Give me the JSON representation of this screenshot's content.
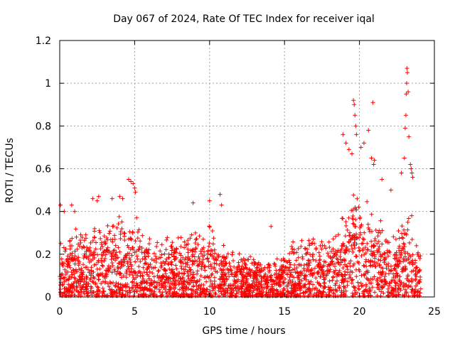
{
  "chart_data": {
    "type": "scatter",
    "title": "Day 067 of 2024, Rate Of TEC Index for receiver iqal",
    "xlabel": "GPS time / hours",
    "ylabel": "ROTI / TECUs",
    "xlim": [
      0,
      25
    ],
    "ylim": [
      0,
      1.2
    ],
    "x_ticks": [
      "0",
      "5",
      "10",
      "15",
      "20",
      "25"
    ],
    "y_ticks": [
      "0",
      "0.2",
      "0.4",
      "0.6",
      "0.8",
      "1",
      "1.2"
    ],
    "x_tick_values": [
      0,
      5,
      10,
      15,
      20,
      25
    ],
    "y_tick_values": [
      0,
      0.2,
      0.4,
      0.6,
      0.8,
      1.0,
      1.2
    ],
    "grid": true,
    "marker": "+",
    "series": [
      {
        "name": "ROTI",
        "color": "#ff0000",
        "envelope_x": [
          0.0,
          0.5,
          1.0,
          1.5,
          2.0,
          2.5,
          3.0,
          3.5,
          4.0,
          4.5,
          5.0,
          5.5,
          6.0,
          6.5,
          7.0,
          7.5,
          8.0,
          8.5,
          9.0,
          9.5,
          10.0,
          10.5,
          11.0,
          11.5,
          12.0,
          12.5,
          13.0,
          13.5,
          14.0,
          14.5,
          15.0,
          15.5,
          16.0,
          16.5,
          17.0,
          17.5,
          18.0,
          18.5,
          19.0,
          19.5,
          20.0,
          20.5,
          21.0,
          21.5,
          22.0,
          22.5,
          23.0,
          23.5,
          24.0
        ],
        "envelope_max": [
          0.3,
          0.28,
          0.32,
          0.33,
          0.38,
          0.4,
          0.36,
          0.38,
          0.4,
          0.38,
          0.42,
          0.35,
          0.32,
          0.3,
          0.3,
          0.28,
          0.28,
          0.3,
          0.33,
          0.32,
          0.36,
          0.3,
          0.26,
          0.24,
          0.22,
          0.2,
          0.2,
          0.18,
          0.18,
          0.2,
          0.24,
          0.26,
          0.28,
          0.3,
          0.32,
          0.28,
          0.3,
          0.35,
          0.45,
          0.55,
          0.5,
          0.45,
          0.4,
          0.38,
          0.36,
          0.35,
          0.45,
          0.4,
          0.22
        ],
        "outliers": [
          {
            "x": 0.05,
            "y": 0.43
          },
          {
            "x": 0.3,
            "y": 0.4
          },
          {
            "x": 0.8,
            "y": 0.43
          },
          {
            "x": 1.0,
            "y": 0.4
          },
          {
            "x": 2.2,
            "y": 0.46
          },
          {
            "x": 2.6,
            "y": 0.47
          },
          {
            "x": 2.5,
            "y": 0.45
          },
          {
            "x": 3.5,
            "y": 0.46
          },
          {
            "x": 4.0,
            "y": 0.47
          },
          {
            "x": 4.2,
            "y": 0.46
          },
          {
            "x": 4.6,
            "y": 0.55
          },
          {
            "x": 4.75,
            "y": 0.54
          },
          {
            "x": 4.9,
            "y": 0.53
          },
          {
            "x": 5.0,
            "y": 0.51
          },
          {
            "x": 5.05,
            "y": 0.49
          },
          {
            "x": 8.9,
            "y": 0.44
          },
          {
            "x": 10.0,
            "y": 0.45
          },
          {
            "x": 10.7,
            "y": 0.48
          },
          {
            "x": 10.8,
            "y": 0.43
          },
          {
            "x": 14.1,
            "y": 0.33
          },
          {
            "x": 18.9,
            "y": 0.76
          },
          {
            "x": 19.1,
            "y": 0.72
          },
          {
            "x": 19.3,
            "y": 0.69
          },
          {
            "x": 19.5,
            "y": 0.67
          },
          {
            "x": 19.6,
            "y": 0.92
          },
          {
            "x": 19.65,
            "y": 0.9
          },
          {
            "x": 19.7,
            "y": 0.85
          },
          {
            "x": 19.75,
            "y": 0.8
          },
          {
            "x": 19.8,
            "y": 0.76
          },
          {
            "x": 20.1,
            "y": 0.7
          },
          {
            "x": 20.3,
            "y": 0.72
          },
          {
            "x": 20.6,
            "y": 0.78
          },
          {
            "x": 20.9,
            "y": 0.91
          },
          {
            "x": 20.8,
            "y": 0.65
          },
          {
            "x": 20.95,
            "y": 0.62
          },
          {
            "x": 21.0,
            "y": 0.64
          },
          {
            "x": 21.5,
            "y": 0.55
          },
          {
            "x": 22.1,
            "y": 0.5
          },
          {
            "x": 22.8,
            "y": 0.58
          },
          {
            "x": 23.0,
            "y": 0.65
          },
          {
            "x": 23.05,
            "y": 0.79
          },
          {
            "x": 23.1,
            "y": 0.85
          },
          {
            "x": 23.12,
            "y": 0.95
          },
          {
            "x": 23.15,
            "y": 1.0
          },
          {
            "x": 23.17,
            "y": 1.07
          },
          {
            "x": 23.2,
            "y": 1.05
          },
          {
            "x": 23.25,
            "y": 0.96
          },
          {
            "x": 23.3,
            "y": 0.75
          },
          {
            "x": 23.4,
            "y": 0.62
          },
          {
            "x": 23.45,
            "y": 0.6
          },
          {
            "x": 23.5,
            "y": 0.58
          },
          {
            "x": 23.55,
            "y": 0.56
          }
        ]
      }
    ]
  }
}
